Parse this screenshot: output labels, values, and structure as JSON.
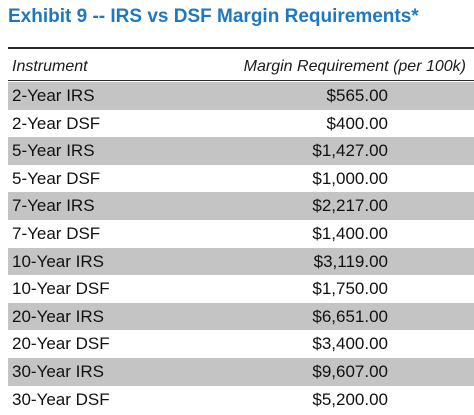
{
  "title": "Exhibit 9 -- IRS vs DSF Margin Requirements*",
  "columns": {
    "instrument": "Instrument",
    "margin": "Margin Requirement (per 100k)"
  },
  "chart_data": {
    "type": "table",
    "title": "Exhibit 9 -- IRS vs DSF Margin Requirements*",
    "columns": [
      "Instrument",
      "Margin Requirement (per 100k)"
    ],
    "rows": [
      {
        "instrument": "2-Year IRS",
        "margin": "$565.00",
        "value": 565.0
      },
      {
        "instrument": "2-Year DSF",
        "margin": "$400.00",
        "value": 400.0
      },
      {
        "instrument": "5-Year IRS",
        "margin": "$1,427.00",
        "value": 1427.0
      },
      {
        "instrument": "5-Year DSF",
        "margin": "$1,000.00",
        "value": 1000.0
      },
      {
        "instrument": "7-Year IRS",
        "margin": "$2,217.00",
        "value": 2217.0
      },
      {
        "instrument": "7-Year DSF",
        "margin": "$1,400.00",
        "value": 1400.0
      },
      {
        "instrument": "10-Year IRS",
        "margin": "$3,119.00",
        "value": 3119.0
      },
      {
        "instrument": "10-Year DSF",
        "margin": "$1,750.00",
        "value": 1750.0
      },
      {
        "instrument": "20-Year IRS",
        "margin": "$6,651.00",
        "value": 6651.0
      },
      {
        "instrument": "20-Year DSF",
        "margin": "$3,400.00",
        "value": 3400.0
      },
      {
        "instrument": "30-Year IRS",
        "margin": "$9,607.00",
        "value": 9607.0
      },
      {
        "instrument": "30-Year DSF",
        "margin": "$5,200.00",
        "value": 5200.0
      }
    ]
  },
  "colors": {
    "title": "#1f78bf",
    "row_shade": "#c4c4c4",
    "rule": "#2a2a2a"
  }
}
